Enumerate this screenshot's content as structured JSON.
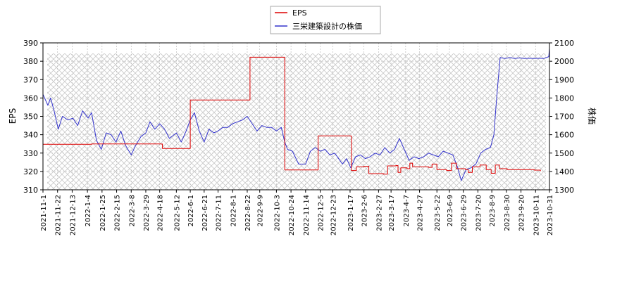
{
  "chart_data": {
    "type": "line",
    "title": "",
    "xlabel": "",
    "ylabel_left": "EPS",
    "ylabel_right": "株価",
    "ylim_left": [
      310,
      390
    ],
    "ylim_right": [
      1300,
      2100
    ],
    "yticks_left": [
      "310",
      "320",
      "330",
      "340",
      "350",
      "360",
      "370",
      "380",
      "390"
    ],
    "yticks_right": [
      "1300",
      "1400",
      "1500",
      "1600",
      "1700",
      "1800",
      "1900",
      "2000",
      "2100"
    ],
    "xlim": [
      "2021-11-01",
      "2023-10-31"
    ],
    "x_tick_labels": [
      "2021-11-1",
      "2021-11-22",
      "2021-12-13",
      "2022-1-4",
      "2022-1-25",
      "2022-2-15",
      "2022-3-8",
      "2022-3-29",
      "2022-4-18",
      "2022-5-12",
      "2022-6-1",
      "2022-6-21",
      "2022-7-11",
      "2022-8-1",
      "2022-8-22",
      "2022-9-9",
      "2022-10-3",
      "2022-10-24",
      "2022-11-14",
      "2022-12-5",
      "2022-12-23",
      "2023-1-17",
      "2023-2-6",
      "2023-2-27",
      "2023-3-17",
      "2023-4-7",
      "2023-4-27",
      "2023-5-22",
      "2023-6-9",
      "2023-6-29",
      "2023-7-20",
      "2023-8-9",
      "2023-8-30",
      "2023-9-20",
      "2023-10-11",
      "2023-10-31"
    ],
    "x_tick_dates": [
      "2021-11-01",
      "2021-11-22",
      "2021-12-13",
      "2022-01-04",
      "2022-01-25",
      "2022-02-15",
      "2022-03-08",
      "2022-03-29",
      "2022-04-18",
      "2022-05-12",
      "2022-06-01",
      "2022-06-21",
      "2022-07-11",
      "2022-08-01",
      "2022-08-22",
      "2022-09-09",
      "2022-10-03",
      "2022-10-24",
      "2022-11-14",
      "2022-12-05",
      "2022-12-23",
      "2023-01-17",
      "2023-02-06",
      "2023-02-27",
      "2023-03-17",
      "2023-04-07",
      "2023-04-27",
      "2023-05-22",
      "2023-06-09",
      "2023-06-29",
      "2023-07-20",
      "2023-08-09",
      "2023-08-30",
      "2023-09-20",
      "2023-10-11",
      "2023-10-31"
    ],
    "legend_position": "top-center",
    "background": "hatched grid",
    "series": [
      {
        "name": "EPS",
        "axis": "left",
        "color": "#dd0000",
        "points": [
          [
            "2021-11-01",
            334.8
          ],
          [
            "2022-01-10",
            335.0
          ],
          [
            "2022-04-20",
            334.9
          ],
          [
            "2022-04-22",
            332.5
          ],
          [
            "2022-05-31",
            332.5
          ],
          [
            "2022-06-01",
            358.9
          ],
          [
            "2022-08-25",
            358.9
          ],
          [
            "2022-08-26",
            382.2
          ],
          [
            "2022-10-14",
            382.2
          ],
          [
            "2022-10-15",
            320.8
          ],
          [
            "2022-12-01",
            320.8
          ],
          [
            "2022-12-02",
            339.4
          ],
          [
            "2023-01-18",
            339.3
          ],
          [
            "2023-01-19",
            320.5
          ],
          [
            "2023-01-26",
            322.5
          ],
          [
            "2023-02-06",
            322.8
          ],
          [
            "2023-02-13",
            318.8
          ],
          [
            "2023-03-06",
            318.5
          ],
          [
            "2023-03-12",
            323.0
          ],
          [
            "2023-03-24",
            323.2
          ],
          [
            "2023-03-27",
            319.5
          ],
          [
            "2023-03-31",
            322.0
          ],
          [
            "2023-04-09",
            321.5
          ],
          [
            "2023-04-13",
            324.5
          ],
          [
            "2023-04-17",
            322.5
          ],
          [
            "2023-05-10",
            322.2
          ],
          [
            "2023-05-15",
            324.0
          ],
          [
            "2023-05-22",
            321.0
          ],
          [
            "2023-06-05",
            320.5
          ],
          [
            "2023-06-12",
            324.5
          ],
          [
            "2023-06-19",
            321.5
          ],
          [
            "2023-07-02",
            321.0
          ],
          [
            "2023-07-06",
            319.5
          ],
          [
            "2023-07-12",
            322.5
          ],
          [
            "2023-07-23",
            323.5
          ],
          [
            "2023-08-01",
            321.0
          ],
          [
            "2023-08-08",
            319.0
          ],
          [
            "2023-08-14",
            323.5
          ],
          [
            "2023-08-20",
            321.5
          ],
          [
            "2023-08-31",
            321.0
          ],
          [
            "2023-10-09",
            320.7
          ],
          [
            "2023-10-18",
            320.2
          ]
        ]
      },
      {
        "name": "三栄建築設計の株価",
        "axis": "right",
        "color": "#3333cc",
        "points": [
          [
            "2021-11-01",
            1820
          ],
          [
            "2021-11-08",
            1760
          ],
          [
            "2021-11-12",
            1800
          ],
          [
            "2021-11-17",
            1730
          ],
          [
            "2021-11-23",
            1630
          ],
          [
            "2021-11-29",
            1700
          ],
          [
            "2021-12-07",
            1680
          ],
          [
            "2021-12-14",
            1690
          ],
          [
            "2021-12-21",
            1650
          ],
          [
            "2021-12-28",
            1730
          ],
          [
            "2022-01-05",
            1690
          ],
          [
            "2022-01-10",
            1720
          ],
          [
            "2022-01-17",
            1570
          ],
          [
            "2022-01-24",
            1520
          ],
          [
            "2022-01-31",
            1610
          ],
          [
            "2022-02-07",
            1600
          ],
          [
            "2022-02-14",
            1560
          ],
          [
            "2022-02-21",
            1620
          ],
          [
            "2022-02-28",
            1540
          ],
          [
            "2022-03-08",
            1490
          ],
          [
            "2022-03-14",
            1540
          ],
          [
            "2022-03-22",
            1590
          ],
          [
            "2022-03-29",
            1610
          ],
          [
            "2022-04-04",
            1670
          ],
          [
            "2022-04-11",
            1630
          ],
          [
            "2022-04-18",
            1660
          ],
          [
            "2022-04-25",
            1630
          ],
          [
            "2022-05-02",
            1580
          ],
          [
            "2022-05-12",
            1610
          ],
          [
            "2022-05-19",
            1560
          ],
          [
            "2022-05-26",
            1620
          ],
          [
            "2022-06-01",
            1680
          ],
          [
            "2022-06-07",
            1720
          ],
          [
            "2022-06-14",
            1620
          ],
          [
            "2022-06-21",
            1560
          ],
          [
            "2022-06-28",
            1630
          ],
          [
            "2022-07-05",
            1610
          ],
          [
            "2022-07-11",
            1620
          ],
          [
            "2022-07-18",
            1640
          ],
          [
            "2022-07-25",
            1640
          ],
          [
            "2022-08-01",
            1660
          ],
          [
            "2022-08-08",
            1670
          ],
          [
            "2022-08-15",
            1680
          ],
          [
            "2022-08-22",
            1700
          ],
          [
            "2022-08-29",
            1660
          ],
          [
            "2022-09-05",
            1620
          ],
          [
            "2022-09-12",
            1650
          ],
          [
            "2022-09-19",
            1640
          ],
          [
            "2022-09-26",
            1640
          ],
          [
            "2022-10-03",
            1620
          ],
          [
            "2022-10-10",
            1640
          ],
          [
            "2022-10-15",
            1560
          ],
          [
            "2022-10-19",
            1520
          ],
          [
            "2022-10-26",
            1510
          ],
          [
            "2022-11-04",
            1440
          ],
          [
            "2022-11-14",
            1440
          ],
          [
            "2022-11-21",
            1510
          ],
          [
            "2022-11-28",
            1530
          ],
          [
            "2022-12-05",
            1510
          ],
          [
            "2022-12-12",
            1520
          ],
          [
            "2022-12-19",
            1490
          ],
          [
            "2022-12-26",
            1500
          ],
          [
            "2023-01-06",
            1440
          ],
          [
            "2023-01-12",
            1470
          ],
          [
            "2023-01-18",
            1420
          ],
          [
            "2023-01-25",
            1480
          ],
          [
            "2023-02-01",
            1490
          ],
          [
            "2023-02-08",
            1470
          ],
          [
            "2023-02-15",
            1480
          ],
          [
            "2023-02-22",
            1500
          ],
          [
            "2023-03-01",
            1490
          ],
          [
            "2023-03-08",
            1530
          ],
          [
            "2023-03-15",
            1500
          ],
          [
            "2023-03-22",
            1520
          ],
          [
            "2023-03-29",
            1580
          ],
          [
            "2023-04-05",
            1520
          ],
          [
            "2023-04-12",
            1460
          ],
          [
            "2023-04-19",
            1480
          ],
          [
            "2023-04-26",
            1470
          ],
          [
            "2023-05-03",
            1480
          ],
          [
            "2023-05-10",
            1500
          ],
          [
            "2023-05-17",
            1490
          ],
          [
            "2023-05-24",
            1480
          ],
          [
            "2023-05-31",
            1510
          ],
          [
            "2023-06-07",
            1500
          ],
          [
            "2023-06-14",
            1490
          ],
          [
            "2023-06-21",
            1420
          ],
          [
            "2023-06-26",
            1350
          ],
          [
            "2023-07-03",
            1410
          ],
          [
            "2023-07-10",
            1420
          ],
          [
            "2023-07-17",
            1440
          ],
          [
            "2023-07-24",
            1500
          ],
          [
            "2023-07-31",
            1520
          ],
          [
            "2023-08-07",
            1530
          ],
          [
            "2023-08-12",
            1600
          ],
          [
            "2023-08-16",
            1800
          ],
          [
            "2023-08-21",
            2020
          ],
          [
            "2023-08-28",
            2015
          ],
          [
            "2023-09-04",
            2020
          ],
          [
            "2023-09-11",
            2015
          ],
          [
            "2023-09-18",
            2018
          ],
          [
            "2023-09-25",
            2015
          ],
          [
            "2023-10-02",
            2016
          ],
          [
            "2023-10-09",
            2015
          ],
          [
            "2023-10-16",
            2016
          ],
          [
            "2023-10-23",
            2015
          ],
          [
            "2023-10-30",
            2025
          ],
          [
            "2023-10-31",
            2070
          ]
        ]
      }
    ]
  }
}
